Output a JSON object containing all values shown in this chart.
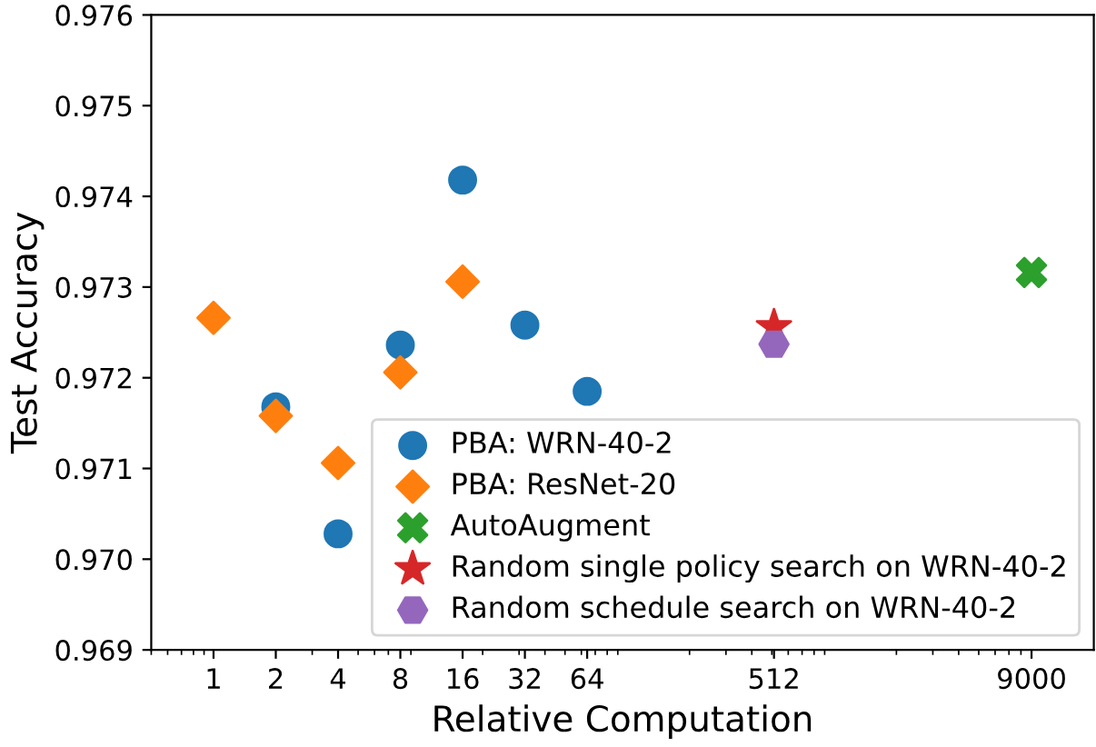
{
  "chart_data": {
    "type": "scatter",
    "xlabel": "Relative Computation",
    "ylabel": "Test Accuracy",
    "log": "x",
    "xlim": [
      0.5,
      18000
    ],
    "xticks": [
      1,
      2,
      4,
      8,
      16,
      32,
      64,
      512,
      9000
    ],
    "ylim": [
      0.969,
      0.976
    ],
    "yticks": [
      {
        "value": 0.969,
        "label": "0.969"
      },
      {
        "value": 0.97,
        "label": "0.970"
      },
      {
        "value": 0.971,
        "label": "0.971"
      },
      {
        "value": 0.972,
        "label": "0.972"
      },
      {
        "value": 0.973,
        "label": "0.973"
      },
      {
        "value": 0.974,
        "label": "0.974"
      },
      {
        "value": 0.975,
        "label": "0.975"
      },
      {
        "value": 0.976,
        "label": "0.976"
      }
    ],
    "grid": false,
    "legend": "bottom right",
    "series": [
      {
        "name": "PBA: WRN-40-2",
        "color": "#1f77b4",
        "marker": "circle",
        "x": [
          2,
          4,
          8,
          16,
          32,
          64
        ],
        "values": [
          0.97168,
          0.97028,
          0.97236,
          0.97418,
          0.97258,
          0.97185
        ]
      },
      {
        "name": "PBA: ResNet-20",
        "color": "#ff7f0e",
        "marker": "diamond",
        "x": [
          1,
          2,
          4,
          8,
          16
        ],
        "values": [
          0.97266,
          0.97158,
          0.97106,
          0.97206,
          0.97306
        ]
      },
      {
        "name": "AutoAugment",
        "color": "#2ca02c",
        "marker": "cross",
        "x": [
          9000
        ],
        "values": [
          0.97316
        ]
      },
      {
        "name": "Random single policy search on WRN-40-2",
        "color": "#d62728",
        "marker": "star",
        "x": [
          512
        ],
        "values": [
          0.97256
        ]
      },
      {
        "name": "Random schedule search on WRN-40-2",
        "color": "#9467bd",
        "x": [
          512
        ],
        "values": [
          0.97237
        ]
      }
    ]
  }
}
